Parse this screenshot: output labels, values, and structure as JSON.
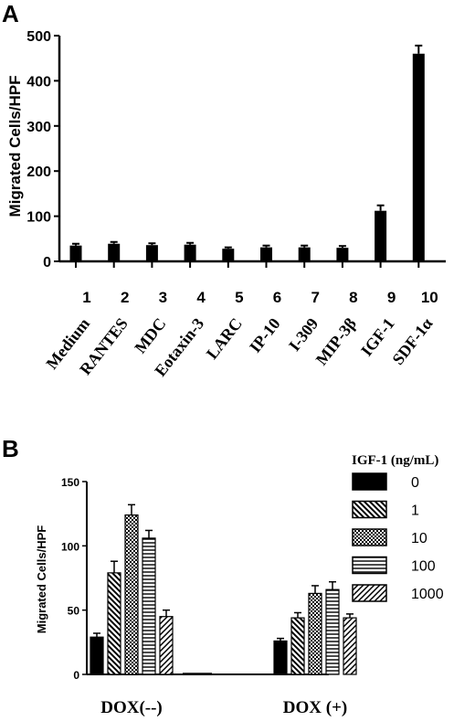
{
  "chart_data": [
    {
      "panel_label": "A",
      "type": "bar",
      "ylabel": "Migrated Cells/HPF",
      "ylim": [
        0,
        500
      ],
      "yticks": [
        "0",
        "100",
        "200",
        "300",
        "400",
        "500"
      ],
      "categories": [
        "Medium",
        "RANTES",
        "MDC",
        "Eotaxin-3",
        "LARC",
        "IP-10",
        "I-309",
        "MIP-3β",
        "IGF-1",
        "SDF-1α"
      ],
      "numbers": [
        "1",
        "2",
        "3",
        "4",
        "5",
        "6",
        "7",
        "8",
        "9",
        "10"
      ],
      "values": [
        35,
        39,
        36,
        37,
        28,
        31,
        31,
        30,
        112,
        460
      ],
      "errors": [
        4,
        4,
        4,
        4,
        3,
        4,
        4,
        4,
        12,
        18
      ],
      "grid": false
    },
    {
      "panel_label": "B",
      "type": "bar",
      "ylabel": "Migrated Cells/HPF",
      "ylim": [
        0,
        150
      ],
      "yticks": [
        "0",
        "50",
        "100",
        "150"
      ],
      "categories": [
        "DOX(--)",
        "DOX (+)"
      ],
      "legend_title": "IGF-1 (ng/mL)",
      "legend_position": "top-right",
      "series": [
        {
          "name": "0",
          "values": [
            29,
            26
          ],
          "errors": [
            3,
            2
          ],
          "pattern": "solid"
        },
        {
          "name": "1",
          "values": [
            79,
            44
          ],
          "errors": [
            9,
            4
          ],
          "pattern": "diag-back"
        },
        {
          "name": "10",
          "values": [
            124,
            63
          ],
          "errors": [
            8,
            6
          ],
          "pattern": "checker"
        },
        {
          "name": "100",
          "values": [
            106,
            66
          ],
          "errors": [
            6,
            6
          ],
          "pattern": "horizontal"
        },
        {
          "name": "1000",
          "values": [
            45,
            44
          ],
          "errors": [
            5,
            3
          ],
          "pattern": "diag-fwd"
        }
      ],
      "grid": false
    }
  ]
}
